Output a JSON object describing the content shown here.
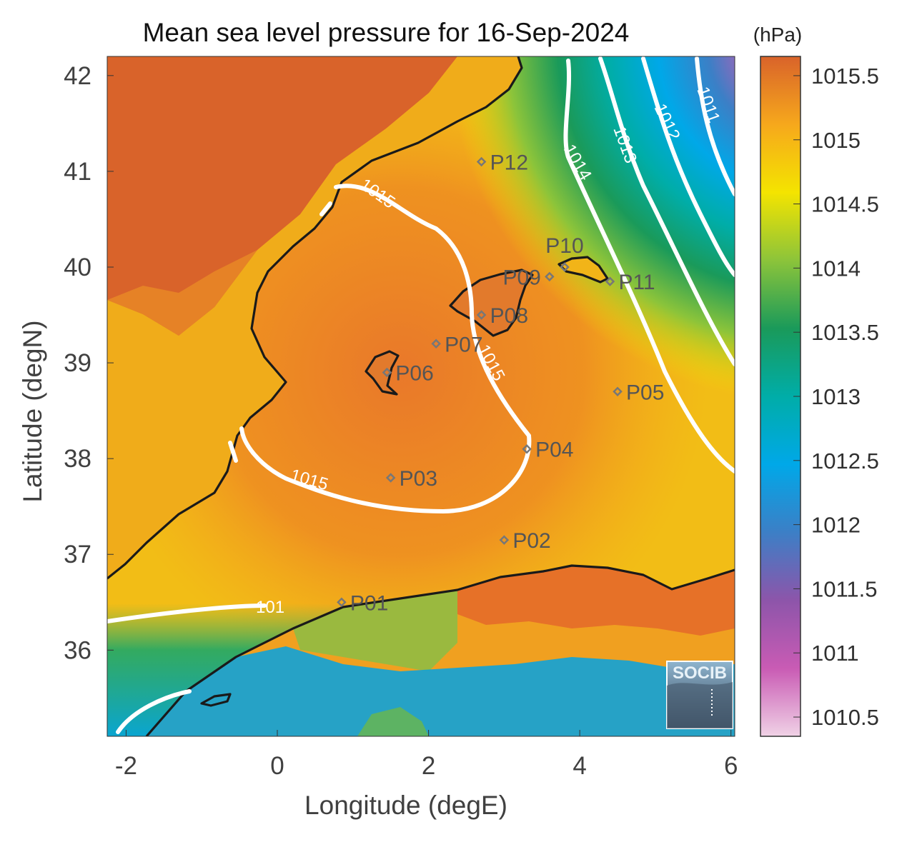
{
  "title": "Mean sea level pressure for 16-Sep-2024",
  "xlabel": "Longitude (degE)",
  "ylabel": "Latitude (degN)",
  "colorbar": {
    "unit": "(hPa)",
    "range": [
      1010.35,
      1015.65
    ],
    "ticks": [
      "1010.5",
      "1011",
      "1011.5",
      "1012",
      "1012.5",
      "1013",
      "1013.5",
      "1014",
      "1014.5",
      "1015",
      "1015.5"
    ],
    "colormap": [
      "#f0d2e6",
      "#c95bb4",
      "#8d55aa",
      "#3c7fc6",
      "#00a8e8",
      "#00ada8",
      "#1a9a5a",
      "#8cc43a",
      "#f4e400",
      "#f6a81c",
      "#d9632a"
    ]
  },
  "axes": {
    "xlim": [
      -2.25,
      6.05
    ],
    "ylim": [
      35.1,
      42.2
    ],
    "xticks": [
      "-2",
      "0",
      "2",
      "4",
      "6"
    ],
    "yticks": [
      "36",
      "37",
      "38",
      "39",
      "40",
      "41",
      "42"
    ]
  },
  "contour_labels": [
    "1015",
    "1015",
    "1015",
    "1014",
    "1013",
    "1012",
    "1011",
    "101"
  ],
  "stations": [
    {
      "id": "P01",
      "lon": 0.85,
      "lat": 36.5
    },
    {
      "id": "P02",
      "lon": 3.0,
      "lat": 37.15
    },
    {
      "id": "P03",
      "lon": 1.5,
      "lat": 37.8
    },
    {
      "id": "P04",
      "lon": 3.3,
      "lat": 38.1
    },
    {
      "id": "P05",
      "lon": 4.5,
      "lat": 38.7
    },
    {
      "id": "P06",
      "lon": 1.45,
      "lat": 38.9
    },
    {
      "id": "P07",
      "lon": 2.1,
      "lat": 39.2
    },
    {
      "id": "P08",
      "lon": 2.7,
      "lat": 39.5
    },
    {
      "id": "P09",
      "lon": 3.6,
      "lat": 39.9
    },
    {
      "id": "P10",
      "lon": 3.8,
      "lat": 40.0
    },
    {
      "id": "P11",
      "lon": 4.4,
      "lat": 39.85
    },
    {
      "id": "P12",
      "lon": 2.7,
      "lat": 41.1
    }
  ],
  "logo": "SOCIB",
  "colors": {
    "land_high": "#d9632a",
    "contour": "#ffffff",
    "coast": "#1a1a1a",
    "station": "#777777"
  }
}
